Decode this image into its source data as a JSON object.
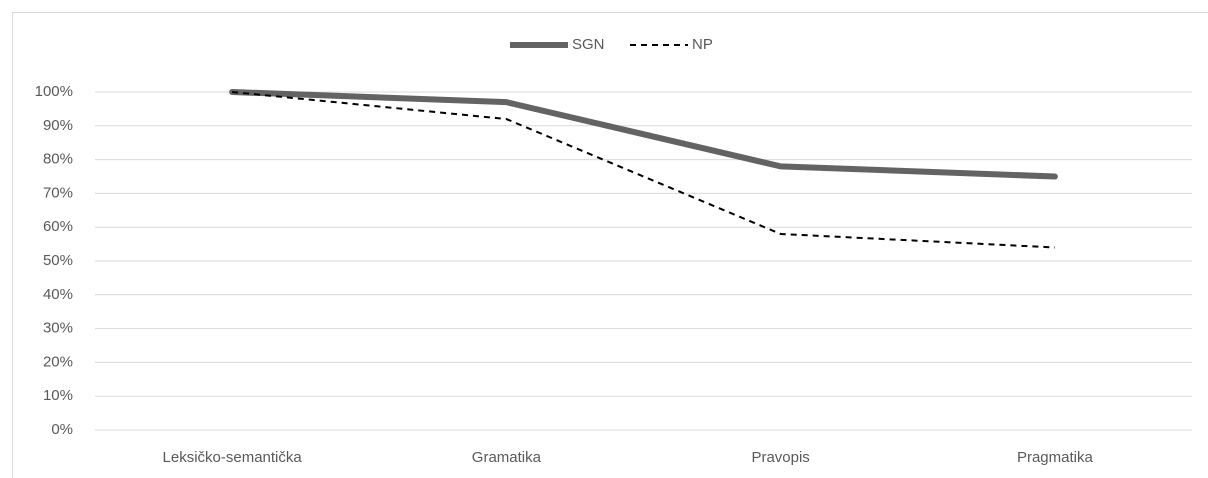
{
  "chart_data": {
    "type": "line",
    "categories": [
      "Leksičko-semantička",
      "Gramatika",
      "Pravopis",
      "Pragmatika"
    ],
    "series": [
      {
        "name": "SGN",
        "color": "#636363",
        "values": [
          100,
          97,
          78,
          75
        ]
      },
      {
        "name": "NP",
        "color": "#000000",
        "values": [
          100,
          92,
          58,
          54
        ]
      }
    ],
    "ylim": [
      0,
      100
    ],
    "yticks": [
      {
        "value": 0,
        "label": "0%"
      },
      {
        "value": 10,
        "label": "10%"
      },
      {
        "value": 20,
        "label": "20%"
      },
      {
        "value": 30,
        "label": "30%"
      },
      {
        "value": 40,
        "label": "40%"
      },
      {
        "value": 50,
        "label": "50%"
      },
      {
        "value": 60,
        "label": "60%"
      },
      {
        "value": 70,
        "label": "70%"
      },
      {
        "value": 80,
        "label": "80%"
      },
      {
        "value": 90,
        "label": "90%"
      },
      {
        "value": 100,
        "label": "100%"
      }
    ],
    "grid": true,
    "legend": "top"
  }
}
